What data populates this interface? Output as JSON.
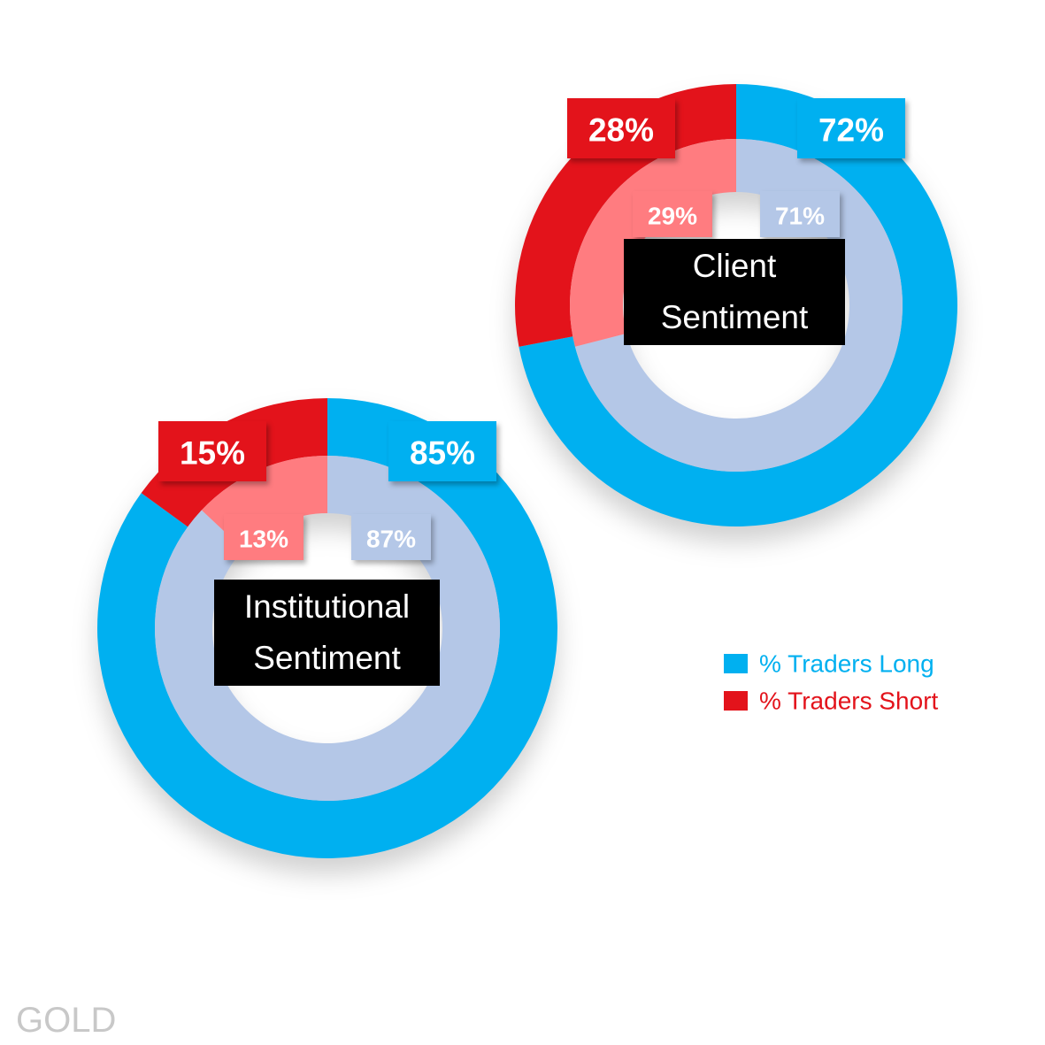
{
  "label": "GOLD",
  "legend": [
    {
      "name": "% Traders Long",
      "color": "#00b0f0"
    },
    {
      "name": "% Traders Short",
      "color": "#e3131b"
    }
  ],
  "chart_data": [
    {
      "type": "donut",
      "title": "Client Sentiment",
      "rings": [
        {
          "values": [
            72,
            28
          ],
          "value_labels": [
            "72%",
            "28%"
          ],
          "colors": [
            "#00b0f0",
            "#e3131b"
          ]
        },
        {
          "values": [
            71,
            29
          ],
          "value_labels": [
            "71%",
            "29%"
          ],
          "colors": [
            "#b4c7e7",
            "#ff7c80"
          ]
        }
      ]
    },
    {
      "type": "donut",
      "title": "Institutional Sentiment",
      "rings": [
        {
          "values": [
            85,
            15
          ],
          "value_labels": [
            "85%",
            "15%"
          ],
          "colors": [
            "#00b0f0",
            "#e3131b"
          ]
        },
        {
          "values": [
            87,
            13
          ],
          "value_labels": [
            "87%",
            "13%"
          ],
          "colors": [
            "#b4c7e7",
            "#ff7c80"
          ]
        }
      ]
    }
  ]
}
